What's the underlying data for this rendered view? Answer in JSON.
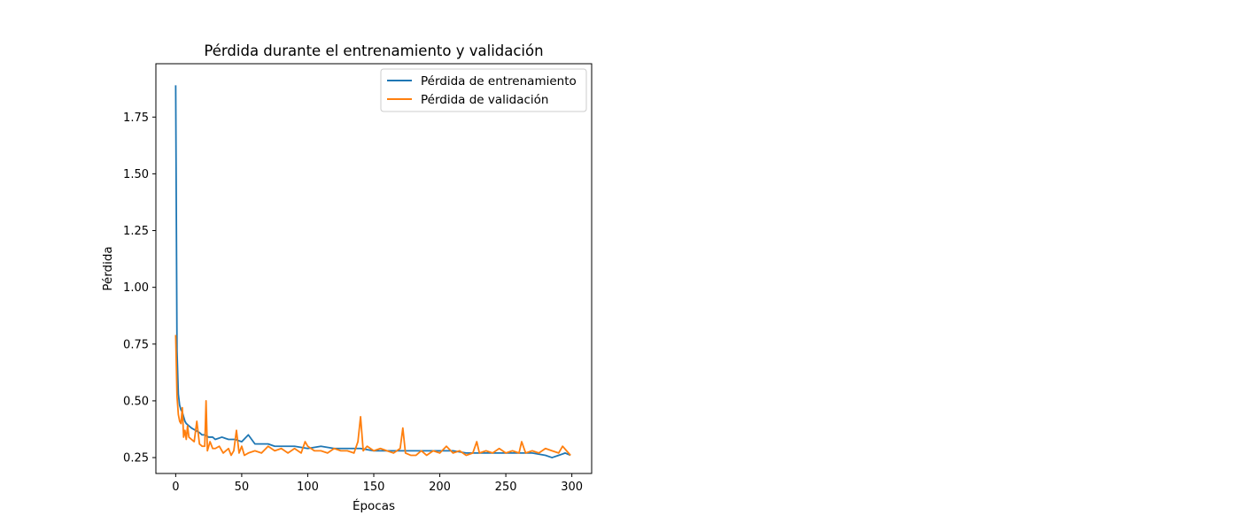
{
  "chart_data": {
    "type": "line",
    "title": "Pérdida durante el entrenamiento y validación",
    "xlabel": "Épocas",
    "ylabel": "Pérdida",
    "xlim": [
      -15,
      315
    ],
    "ylim": [
      0.18,
      1.985
    ],
    "xticks": [
      0,
      50,
      100,
      150,
      200,
      250,
      300
    ],
    "xtick_labels": [
      "0",
      "50",
      "100",
      "150",
      "200",
      "250",
      "300"
    ],
    "yticks": [
      0.25,
      0.5,
      0.75,
      1.0,
      1.25,
      1.5,
      1.75
    ],
    "ytick_labels": [
      "0.25",
      "0.50",
      "0.75",
      "1.00",
      "1.25",
      "1.50",
      "1.75"
    ],
    "grid": false,
    "legend_position": "top-right",
    "series": [
      {
        "name": "Pérdida de entrenamiento",
        "color": "#1f77b4",
        "x": [
          0,
          1,
          2,
          3,
          4,
          5,
          6,
          7,
          8,
          10,
          12,
          15,
          18,
          20,
          22,
          25,
          28,
          30,
          35,
          40,
          45,
          50,
          55,
          60,
          65,
          70,
          75,
          80,
          90,
          100,
          110,
          120,
          130,
          140,
          150,
          160,
          170,
          180,
          190,
          200,
          210,
          220,
          230,
          240,
          250,
          260,
          270,
          280,
          285,
          290,
          295,
          299
        ],
        "values": [
          1.89,
          0.72,
          0.53,
          0.48,
          0.46,
          0.45,
          0.43,
          0.41,
          0.4,
          0.39,
          0.38,
          0.37,
          0.36,
          0.35,
          0.35,
          0.34,
          0.34,
          0.33,
          0.34,
          0.33,
          0.33,
          0.32,
          0.35,
          0.31,
          0.31,
          0.31,
          0.3,
          0.3,
          0.3,
          0.29,
          0.3,
          0.29,
          0.29,
          0.29,
          0.28,
          0.28,
          0.28,
          0.28,
          0.28,
          0.28,
          0.28,
          0.27,
          0.27,
          0.27,
          0.27,
          0.27,
          0.27,
          0.26,
          0.25,
          0.26,
          0.27,
          0.26
        ]
      },
      {
        "name": "Pérdida de validación",
        "color": "#ff7f0e",
        "x": [
          0,
          1,
          2,
          3,
          4,
          5,
          6,
          7,
          8,
          9,
          10,
          12,
          14,
          16,
          18,
          20,
          22,
          23,
          24,
          26,
          28,
          30,
          33,
          36,
          40,
          42,
          44,
          46,
          48,
          50,
          52,
          55,
          60,
          65,
          70,
          75,
          80,
          85,
          90,
          95,
          98,
          100,
          105,
          110,
          115,
          120,
          125,
          130,
          135,
          138,
          140,
          142,
          145,
          150,
          155,
          160,
          165,
          170,
          172,
          174,
          178,
          182,
          186,
          190,
          195,
          200,
          205,
          210,
          215,
          220,
          225,
          228,
          230,
          235,
          240,
          245,
          250,
          255,
          260,
          262,
          265,
          270,
          275,
          280,
          285,
          290,
          293,
          296,
          299
        ],
        "values": [
          0.79,
          0.52,
          0.44,
          0.41,
          0.4,
          0.47,
          0.34,
          0.37,
          0.33,
          0.39,
          0.34,
          0.33,
          0.32,
          0.41,
          0.31,
          0.3,
          0.3,
          0.5,
          0.28,
          0.32,
          0.29,
          0.29,
          0.3,
          0.27,
          0.29,
          0.26,
          0.28,
          0.37,
          0.27,
          0.3,
          0.26,
          0.27,
          0.28,
          0.27,
          0.3,
          0.28,
          0.29,
          0.27,
          0.29,
          0.27,
          0.32,
          0.3,
          0.28,
          0.28,
          0.27,
          0.29,
          0.28,
          0.28,
          0.27,
          0.32,
          0.43,
          0.28,
          0.3,
          0.28,
          0.29,
          0.28,
          0.27,
          0.29,
          0.38,
          0.27,
          0.26,
          0.26,
          0.28,
          0.26,
          0.28,
          0.27,
          0.3,
          0.27,
          0.28,
          0.26,
          0.27,
          0.32,
          0.27,
          0.28,
          0.27,
          0.29,
          0.27,
          0.28,
          0.27,
          0.32,
          0.27,
          0.28,
          0.27,
          0.29,
          0.28,
          0.27,
          0.3,
          0.28,
          0.26
        ]
      }
    ]
  }
}
